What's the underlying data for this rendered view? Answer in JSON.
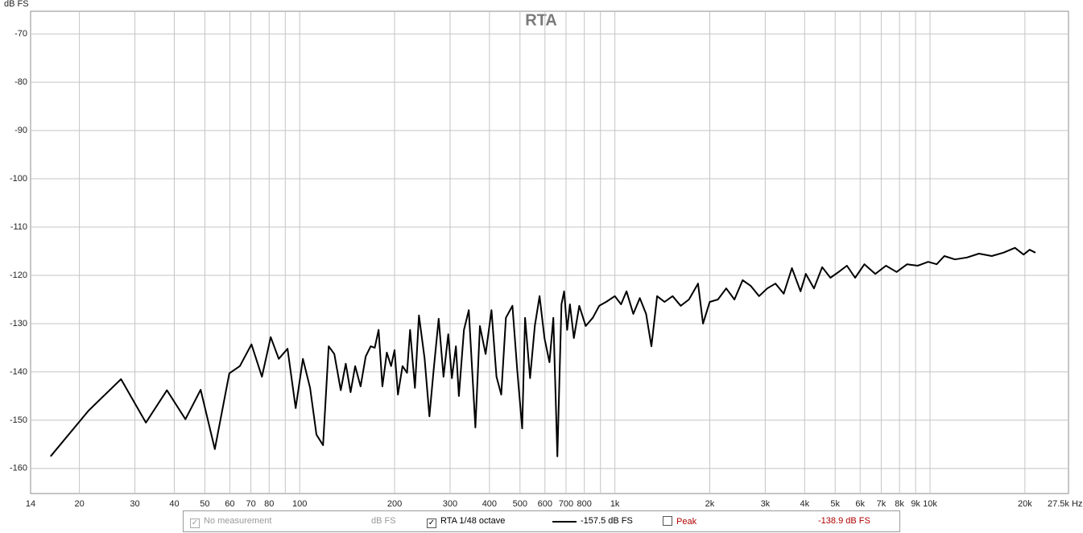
{
  "chart_data": {
    "type": "line",
    "title": "RTA",
    "y_label": "dB FS",
    "xscale": "log",
    "xlim": [
      14,
      27500
    ],
    "ylim": [
      -165.2,
      -65.3
    ],
    "xticks": [
      14,
      20,
      30,
      40,
      50,
      60,
      70,
      80,
      100,
      200,
      300,
      400,
      500,
      600,
      700,
      800,
      {
        "value": 1000,
        "label": "1k"
      },
      {
        "value": 2000,
        "label": "2k"
      },
      {
        "value": 3000,
        "label": "3k"
      },
      {
        "value": 4000,
        "label": "4k"
      },
      {
        "value": 5000,
        "label": "5k"
      },
      {
        "value": 6000,
        "label": "6k"
      },
      {
        "value": 7000,
        "label": "7k"
      },
      {
        "value": 8000,
        "label": "8k"
      },
      {
        "value": 9000,
        "label": "9k"
      },
      {
        "value": 10000,
        "label": "10k"
      },
      {
        "value": 20000,
        "label": "20k"
      },
      {
        "value": 27500,
        "label": "27.5k Hz"
      }
    ],
    "xgrid_minor": [
      90,
      900
    ],
    "yticks": [
      -70,
      -80,
      -90,
      -100,
      -110,
      -120,
      -130,
      -140,
      -150,
      -160
    ],
    "grid": true,
    "series": [
      {
        "name": "RTA 1/48 octave",
        "color": "#000000",
        "x": [
          16.2,
          21.4,
          27.1,
          32.5,
          37.9,
          43.4,
          48.5,
          53.8,
          59.8,
          64.6,
          70.3,
          75.9,
          80.9,
          85.8,
          91.5,
          97.1,
          102.4,
          107.9,
          113,
          118.6,
          123.6,
          128.8,
          135,
          140,
          145,
          150,
          156,
          162,
          168,
          173,
          178,
          183,
          189,
          195,
          200,
          205,
          212,
          219,
          224,
          232,
          239,
          249,
          258,
          266,
          276,
          286,
          296,
          304,
          313,
          320,
          332,
          344,
          361,
          373,
          389,
          406,
          421,
          436,
          451,
          473,
          490,
          508,
          519,
          538,
          557,
          577,
          598,
          620,
          638,
          657,
          677,
          690,
          706,
          720,
          741,
          771,
          808,
          851,
          892,
          938,
          1000,
          1046,
          1089,
          1144,
          1200,
          1256,
          1306,
          1362,
          1437,
          1524,
          1618,
          1718,
          1836,
          1904,
          1999,
          2123,
          2255,
          2395,
          2543,
          2700,
          2867,
          3045,
          3233,
          3434,
          3646,
          3883,
          4037,
          4283,
          4548,
          4829,
          5129,
          5447,
          5785,
          6190,
          6707,
          7247,
          7830,
          8455,
          9136,
          9861,
          10500,
          11100,
          12000,
          13100,
          14300,
          15700,
          17100,
          18600,
          19800,
          20700,
          21600
        ],
        "values": [
          -157.5,
          -148,
          -141.5,
          -150.5,
          -143.8,
          -149.8,
          -143.7,
          -156,
          -140.3,
          -138.8,
          -134.3,
          -141,
          -132.8,
          -137.3,
          -135.2,
          -147.5,
          -137.3,
          -143.3,
          -153,
          -155.2,
          -134.7,
          -136.3,
          -143.8,
          -138.3,
          -144.2,
          -138.8,
          -143,
          -136.8,
          -134.7,
          -135,
          -131.3,
          -143,
          -136,
          -138.8,
          -135.5,
          -144.7,
          -138.8,
          -140.2,
          -131.3,
          -143.3,
          -128.3,
          -137.2,
          -149.2,
          -139.7,
          -129,
          -141,
          -132.2,
          -141.3,
          -134.7,
          -145,
          -131.3,
          -127.2,
          -151.5,
          -130.5,
          -136.3,
          -127.2,
          -141,
          -144.7,
          -128.8,
          -126.3,
          -139.7,
          -151.7,
          -128.8,
          -141.3,
          -130.5,
          -124.3,
          -133,
          -138,
          -128.8,
          -157.5,
          -126,
          -123.3,
          -131.3,
          -126,
          -133,
          -126.3,
          -130.5,
          -128.8,
          -126.3,
          -125.5,
          -124.3,
          -126,
          -123.3,
          -128,
          -124.7,
          -128,
          -134.7,
          -124.3,
          -125.5,
          -124.3,
          -126.3,
          -125,
          -121.7,
          -130,
          -125.5,
          -125,
          -122.7,
          -125,
          -121,
          -122.2,
          -124.3,
          -122.7,
          -121.7,
          -123.8,
          -118.5,
          -123.3,
          -119.7,
          -122.7,
          -118.3,
          -120.5,
          -119.3,
          -118,
          -120.5,
          -117.7,
          -119.7,
          -118,
          -119.3,
          -117.7,
          -118,
          -117.2,
          -117.7,
          -116,
          -116.7,
          -116.3,
          -115.5,
          -116,
          -115.3,
          -114.3,
          -115.7,
          -114.7,
          -115.3
        ]
      }
    ]
  },
  "status_bar": {
    "measurement": "No measurement",
    "measurement_unit": "dB FS",
    "rta": "RTA 1/48 octave",
    "rta_value": "-157.5 dB FS",
    "peak": "Peak",
    "peak_value": "-138.9 dB FS"
  }
}
